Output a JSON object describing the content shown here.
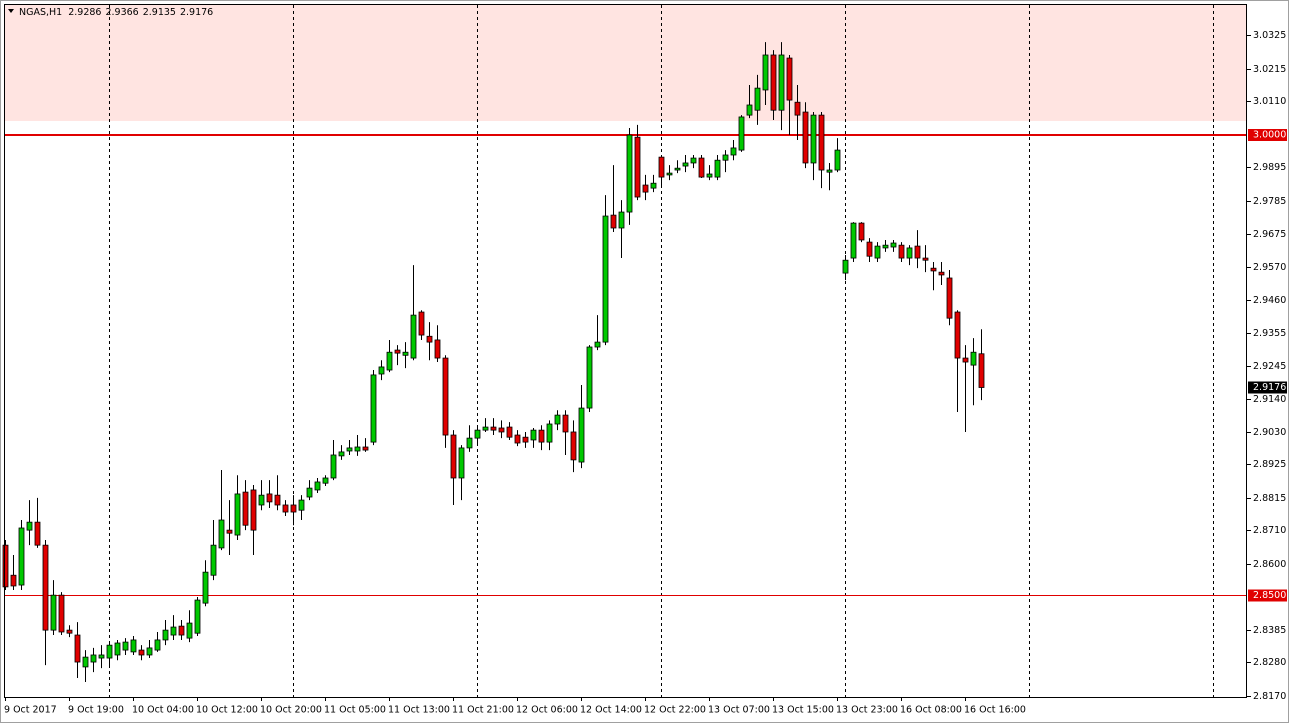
{
  "chart_data": {
    "type": "candlestick",
    "symbol": "NGAS,H1",
    "categories": [
      "9 Oct 2017",
      null,
      null,
      null,
      null,
      null,
      null,
      null,
      "9 Oct 19:00",
      null,
      null,
      null,
      null,
      null,
      null,
      null,
      "10 Oct 04:00",
      null,
      null,
      null,
      null,
      null,
      null,
      null,
      "10 Oct 12:00",
      null,
      null,
      null,
      null,
      null,
      null,
      null,
      "10 Oct 20:00",
      null,
      null,
      null,
      null,
      null,
      null,
      null,
      "11 Oct 05:00",
      null,
      null,
      null,
      null,
      null,
      null,
      null,
      "11 Oct 13:00",
      null,
      null,
      null,
      null,
      null,
      null,
      null,
      "11 Oct 21:00",
      null,
      null,
      null,
      null,
      null,
      null,
      null,
      "12 Oct 06:00",
      null,
      null,
      null,
      null,
      null,
      null,
      null,
      "12 Oct 14:00",
      null,
      null,
      null,
      null,
      null,
      null,
      null,
      "12 Oct 22:00",
      null,
      null,
      null,
      null,
      null,
      null,
      null,
      "13 Oct 07:00",
      null,
      null,
      null,
      null,
      null,
      null,
      null,
      "13 Oct 15:00",
      null,
      null,
      null,
      null,
      null,
      null,
      null,
      "13 Oct 23:00",
      null,
      null,
      null,
      null,
      null,
      null,
      null,
      "16 Oct 08:00",
      null,
      null,
      null,
      null,
      null,
      null,
      null,
      "16 Oct 16:00",
      null,
      null
    ],
    "open": [
      2.8662,
      2.8564,
      2.8532,
      2.8711,
      2.8737,
      2.8662,
      2.8385,
      2.8499,
      2.8385,
      2.8369,
      2.8265,
      2.8281,
      2.8294,
      2.8294,
      2.8304,
      2.832,
      2.8314,
      2.832,
      2.8304,
      2.832,
      2.8353,
      2.8369,
      2.8398,
      2.8359,
      2.8375,
      2.8473,
      2.8564,
      2.8653,
      2.8711,
      2.8695,
      2.8835,
      2.8842,
      2.8793,
      2.8829,
      2.8825,
      2.8793,
      2.8793,
      2.8776,
      2.8819,
      2.8842,
      2.8864,
      2.8881,
      2.8953,
      2.8969,
      2.8969,
      2.8982,
      2.8998,
      2.922,
      2.9233,
      2.9298,
      2.9281,
      2.9272,
      2.9422,
      2.9343,
      2.9331,
      2.9272,
      2.9021,
      2.8881,
      2.8979,
      2.9011,
      2.9037,
      2.9047,
      2.9044,
      2.9047,
      2.9021,
      2.9014,
      2.9005,
      2.9037,
      2.8998,
      2.9057,
      2.9086,
      2.9031,
      2.8933,
      2.9109,
      2.9308,
      2.9324,
      2.9738,
      2.9696,
      2.9748,
      2.9992,
      2.9836,
      2.9826,
      2.9927,
      2.9869,
      2.9885,
      2.9898,
      2.9908,
      2.9924,
      2.9862,
      2.9862,
      2.9917,
      2.9934,
      2.995,
      3.0064,
      3.008,
      3.0146,
      3.026,
      3.008,
      3.025,
      3.0106,
      3.0074,
      2.9908,
      3.0064,
      2.9878,
      2.9885,
      2.9549,
      2.9598,
      2.9712,
      2.965,
      2.9598,
      2.9631,
      2.9634,
      2.964,
      2.9598,
      2.9637,
      2.9598,
      2.9565,
      2.9552,
      2.9533,
      2.9422,
      2.9272,
      2.9249,
      2.9286
    ],
    "high": [
      2.8679,
      2.863,
      2.8744,
      2.8809,
      2.8816,
      2.8679,
      2.8548,
      2.8509,
      2.8401,
      2.8411,
      2.832,
      2.8327,
      2.8336,
      2.8346,
      2.8353,
      2.8359,
      2.8366,
      2.8336,
      2.8353,
      2.8379,
      2.8418,
      2.8434,
      2.8418,
      2.845,
      2.8493,
      2.8613,
      2.8744,
      2.8907,
      2.8809,
      2.889,
      2.8874,
      2.8858,
      2.8874,
      2.8874,
      2.889,
      2.8809,
      2.8825,
      2.8825,
      2.8874,
      2.8881,
      2.889,
      2.9005,
      2.8988,
      2.9005,
      2.9021,
      2.9011,
      2.9233,
      2.9265,
      2.9331,
      2.9314,
      2.9324,
      2.9575,
      2.9428,
      2.9389,
      2.9379,
      2.9281,
      2.9037,
      2.8988,
      2.9053,
      2.9053,
      2.9076,
      2.9076,
      2.9069,
      2.9063,
      2.9037,
      2.9031,
      2.9044,
      2.9053,
      2.9069,
      2.9102,
      2.9102,
      2.9069,
      2.9184,
      2.9314,
      2.9412,
      2.9803,
      2.9901,
      2.9787,
      3.0022,
      3.0032,
      2.9869,
      2.9869,
      2.9934,
      2.9901,
      2.9917,
      2.9934,
      2.9934,
      2.9934,
      2.9901,
      2.9934,
      2.995,
      2.9983,
      3.0064,
      3.0162,
      3.0195,
      3.0302,
      3.0276,
      3.0302,
      3.026,
      3.0162,
      3.0106,
      3.0074,
      3.0074,
      2.9908,
      2.9989,
      2.9608,
      2.9715,
      2.9715,
      2.9663,
      2.965,
      2.9657,
      2.9657,
      2.965,
      2.964,
      2.9689,
      2.964,
      2.9585,
      2.9585,
      2.9559,
      2.9428,
      2.9314,
      2.9337,
      2.9366
    ],
    "low": [
      2.8516,
      2.8516,
      2.8516,
      2.8662,
      2.8653,
      2.8271,
      2.8369,
      2.8369,
      2.8362,
      2.8229,
      2.8216,
      2.8248,
      2.8261,
      2.8271,
      2.8287,
      2.8304,
      2.8304,
      2.8287,
      2.8294,
      2.8314,
      2.8336,
      2.8353,
      2.8353,
      2.8346,
      2.8366,
      2.8463,
      2.8548,
      2.8646,
      2.863,
      2.8679,
      2.8711,
      2.863,
      2.8776,
      2.8783,
      2.8776,
      2.8757,
      2.8727,
      2.8744,
      2.8809,
      2.8832,
      2.8855,
      2.8874,
      2.894,
      2.8956,
      2.8953,
      2.8966,
      2.8988,
      2.92,
      2.9226,
      2.9249,
      2.9239,
      2.9265,
      2.9331,
      2.9265,
      2.9259,
      2.8979,
      2.8793,
      2.8809,
      2.8966,
      2.8988,
      2.9031,
      2.9021,
      2.9011,
      2.9005,
      2.8985,
      2.8979,
      2.8979,
      2.8972,
      2.8972,
      2.9037,
      2.8956,
      2.89,
      2.8913,
      2.9096,
      2.9298,
      2.9314,
      2.9683,
      2.9598,
      2.9706,
      2.9787,
      2.9787,
      2.9813,
      2.9836,
      2.9852,
      2.9875,
      2.9878,
      2.9891,
      2.9859,
      2.9852,
      2.9852,
      2.9878,
      2.9917,
      2.9944,
      3.0054,
      3.0032,
      3.0097,
      3.0048,
      3.0015,
      2.9999,
      2.9983,
      2.9891,
      2.9852,
      2.9826,
      2.9819,
      2.9878,
      2.9526,
      2.9585,
      2.965,
      2.9585,
      2.9585,
      2.9618,
      2.9618,
      2.9585,
      2.9575,
      2.9565,
      2.9552,
      2.9493,
      2.951,
      2.9379,
      2.9096,
      2.9031,
      2.9118,
      2.9135
    ],
    "close": [
      2.8526,
      2.8529,
      2.8718,
      2.8737,
      2.8662,
      2.8385,
      2.8499,
      2.8379,
      2.8375,
      2.8281,
      2.8297,
      2.8304,
      2.8304,
      2.8336,
      2.8343,
      2.8346,
      2.8353,
      2.8304,
      2.8327,
      2.8353,
      2.8385,
      2.8395,
      2.8369,
      2.8408,
      2.8483,
      2.8574,
      2.8662,
      2.8744,
      2.8701,
      2.8829,
      2.8727,
      2.8711,
      2.8825,
      2.8803,
      2.8793,
      2.877,
      2.877,
      2.8809,
      2.8848,
      2.8868,
      2.8881,
      2.8956,
      2.8966,
      2.8979,
      2.8982,
      2.8972,
      2.9217,
      2.9243,
      2.9291,
      2.9288,
      2.9291,
      2.9412,
      2.9347,
      2.9324,
      2.9272,
      2.9021,
      2.8881,
      2.8979,
      2.9011,
      2.9037,
      2.9047,
      2.9037,
      2.9031,
      2.9014,
      2.8995,
      2.8998,
      2.9037,
      2.8998,
      2.9057,
      2.9086,
      2.9031,
      2.894,
      2.9109,
      2.9308,
      2.9324,
      2.9735,
      2.9696,
      2.9748,
      2.9999,
      2.9797,
      2.9813,
      2.9842,
      2.9862,
      2.9875,
      2.9891,
      2.9908,
      2.9924,
      2.9862,
      2.9872,
      2.9917,
      2.9934,
      2.9957,
      3.0058,
      3.0097,
      3.0152,
      3.026,
      3.008,
      3.026,
      3.0113,
      3.0064,
      2.9908,
      3.0064,
      2.9885,
      2.9885,
      2.995,
      2.9591,
      2.9712,
      2.9657,
      2.9604,
      2.9637,
      2.964,
      2.9647,
      2.9598,
      2.9631,
      2.9598,
      2.9591,
      2.9556,
      2.9543,
      2.9402,
      2.9272,
      2.9259,
      2.9291,
      2.9176
    ],
    "up_color": "#00c800",
    "down_color": "#e00000",
    "ylim": [
      2.8167,
      3.0423
    ],
    "yticks": [
      3.0325,
      3.0215,
      {
        "value": 3.011,
        "label": "3.0110"
      },
      2.9895,
      2.9785,
      2.9675,
      {
        "value": 2.957,
        "label": "2.9570"
      },
      {
        "value": 2.946,
        "label": "2.9460"
      },
      2.9355,
      2.9245,
      {
        "value": 2.914,
        "label": "2.9140"
      },
      {
        "value": 2.903,
        "label": "2.9030"
      },
      2.8925,
      2.8815,
      {
        "value": 2.871,
        "label": "2.8710"
      },
      {
        "value": 2.86,
        "label": "2.8600"
      },
      2.8385,
      {
        "value": 2.828,
        "label": "2.8280"
      },
      {
        "value": 2.817,
        "label": "2.8170"
      }
    ],
    "levels": [
      {
        "value": 3,
        "label": "3.0000",
        "color": "#e00000",
        "width": 2
      },
      {
        "value": 2.85,
        "label": "2.8500",
        "color": "#e00000",
        "width": 1
      }
    ],
    "zone": {
      "from": 3.0045,
      "to": 3.0423,
      "color": "#ffe4e1"
    },
    "last_price": 2.9176,
    "grid": true
  }
}
